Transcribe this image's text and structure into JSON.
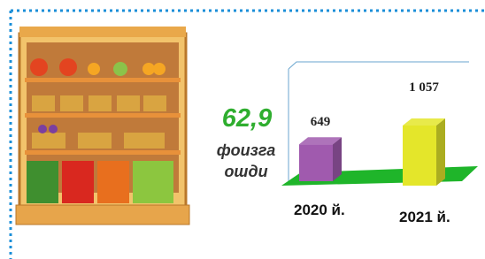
{
  "chart_data": {
    "type": "bar",
    "categories": [
      "2020 й.",
      "2021 й."
    ],
    "series": [
      {
        "values": [
          649,
          1057
        ],
        "value_labels": [
          "649",
          "1 057"
        ],
        "colors": [
          "#a05aae",
          "#e4e62a"
        ]
      }
    ],
    "annotation": {
      "value": "62,9",
      "text": [
        "фоизга",
        "ошди"
      ],
      "color": "#2fae2f"
    },
    "floor_color": "#1fb52a"
  }
}
